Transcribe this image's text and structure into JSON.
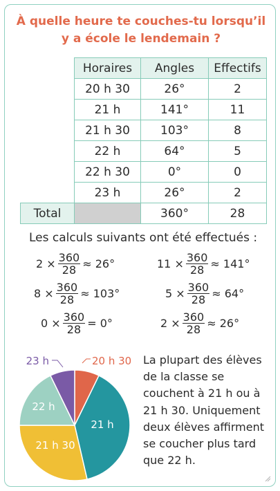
{
  "title": "À quelle heure te couches-tu lorsqu’il y a école le lendemain ?",
  "table": {
    "headers": [
      "Horaires",
      "Angles",
      "Effectifs"
    ],
    "rows": [
      {
        "horaire": "20 h 30",
        "angle": "26°",
        "effectif": "2"
      },
      {
        "horaire": "21 h",
        "angle": "141°",
        "effectif": "11"
      },
      {
        "horaire": "21 h 30",
        "angle": "103°",
        "effectif": "8"
      },
      {
        "horaire": "22 h",
        "angle": "64°",
        "effectif": "5"
      },
      {
        "horaire": "22 h 30",
        "angle": "0°",
        "effectif": "0"
      },
      {
        "horaire": "23 h",
        "angle": "26°",
        "effectif": "2"
      }
    ],
    "total": {
      "label": "Total",
      "angle": "360°",
      "effectif": "28"
    }
  },
  "calc_intro": "Les calculs suivants ont été effectués :",
  "calcs": [
    {
      "left": "2 ×",
      "num": "360",
      "den": "28",
      "right": "≈ 26°"
    },
    {
      "left": "11 ×",
      "num": "360",
      "den": "28",
      "right": "≈ 141°"
    },
    {
      "left": "8 ×",
      "num": "360",
      "den": "28",
      "right": "≈ 103°"
    },
    {
      "left": "5 ×",
      "num": "360",
      "den": "28",
      "right": "≈ 64°"
    },
    {
      "left": "0 ×",
      "num": "360",
      "den": "28",
      "right": "= 0°"
    },
    {
      "left": "2 ×",
      "num": "360",
      "den": "28",
      "right": "≈ 26°"
    }
  ],
  "chart_data": {
    "type": "pie",
    "slices": [
      {
        "label": "20 h 30",
        "angle": 26,
        "color": "#e0664a"
      },
      {
        "label": "21 h",
        "angle": 141,
        "color": "#24969f"
      },
      {
        "label": "21 h 30",
        "angle": 103,
        "color": "#f0bf35"
      },
      {
        "label": "22 h",
        "angle": 64,
        "color": "#9dd1c2"
      },
      {
        "label": "23 h",
        "angle": 26,
        "color": "#7a5aa6"
      }
    ]
  },
  "description": "La plupart des élèves de la classe se couchent à 21 h ou à 21 h 30. Uniquement deux élèves affirment se coucher plus tard que 22 h."
}
